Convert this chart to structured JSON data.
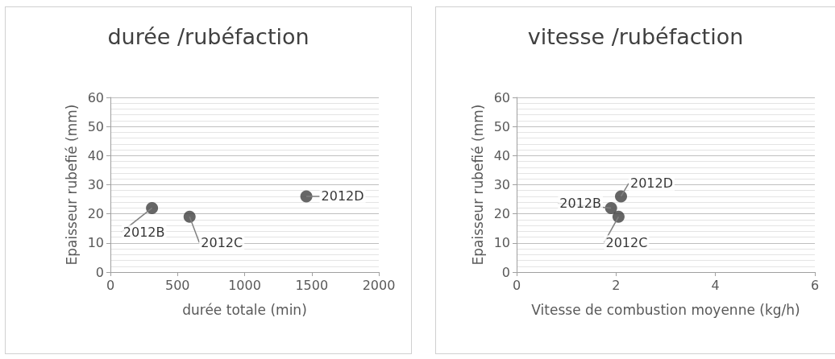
{
  "chart_data": [
    {
      "type": "scatter",
      "title": "durée /rubéfaction",
      "xlabel": "durée totale (min)",
      "ylabel": "Epaisseur rubefié (mm)",
      "x": [
        310,
        590,
        1460
      ],
      "values": [
        22,
        19,
        26
      ],
      "color": "#404040",
      "xlim": [
        0,
        2000
      ],
      "xticks": [
        0,
        500,
        1000,
        1500,
        2000
      ],
      "ylim": [
        0,
        60
      ],
      "yticks": [
        0,
        10,
        20,
        30,
        40,
        50,
        60
      ],
      "grid": "y",
      "marker": "circle",
      "annotations": [
        {
          "text": "2012B",
          "x": 310,
          "y": 22
        },
        {
          "text": "2012C",
          "x": 590,
          "y": 19
        },
        {
          "text": "2012D",
          "x": 1460,
          "y": 26
        }
      ]
    },
    {
      "type": "scatter",
      "title": "vitesse /rubéfaction",
      "xlabel": "Vitesse de combustion moyenne (kg/h)",
      "ylabel": "Epaisseur rubefié (mm)",
      "x": [
        1.9,
        2.05,
        2.1
      ],
      "values": [
        22,
        19,
        26
      ],
      "color": "#404040",
      "xlim": [
        0,
        6
      ],
      "xticks": [
        0,
        2,
        4,
        6
      ],
      "ylim": [
        0,
        60
      ],
      "yticks": [
        0,
        10,
        20,
        30,
        40,
        50,
        60
      ],
      "grid": "y",
      "marker": "circle",
      "annotations": [
        {
          "text": "2012B",
          "x": 1.9,
          "y": 22
        },
        {
          "text": "2012C",
          "x": 2.05,
          "y": 19
        },
        {
          "text": "2012D",
          "x": 2.1,
          "y": 26
        }
      ]
    }
  ]
}
